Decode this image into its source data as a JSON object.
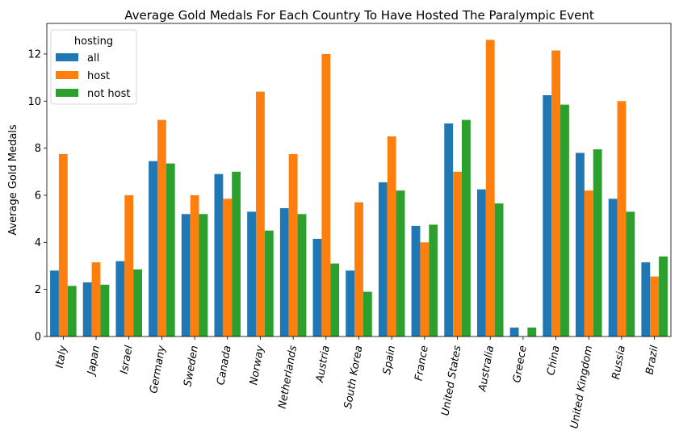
{
  "chart_data": {
    "type": "bar",
    "title": "Average Gold Medals For Each Country To Have Hosted The Paralympic Event",
    "xlabel": "",
    "ylabel": "Average Gold Medals",
    "ylim": [
      0,
      13.3
    ],
    "yticks": [
      0,
      2,
      4,
      6,
      8,
      10,
      12
    ],
    "grid": false,
    "legend": {
      "title": "hosting",
      "placement": "top-left"
    },
    "categories": [
      "Italy",
      "Japan",
      "Israel",
      "Germany",
      "Sweden",
      "Canada",
      "Norway",
      "Netherlands",
      "Austria",
      "South Korea",
      "Spain",
      "France",
      "United States",
      "Australia",
      "Greece",
      "China",
      "United Kingdom",
      "Russia",
      "Brazil"
    ],
    "series": [
      {
        "name": "all",
        "color": "#1f77b4",
        "values": [
          2.8,
          2.3,
          3.2,
          7.45,
          5.2,
          6.9,
          5.3,
          5.45,
          4.15,
          2.8,
          6.55,
          4.7,
          9.05,
          6.25,
          0.38,
          10.25,
          7.8,
          5.85,
          3.15
        ]
      },
      {
        "name": "host",
        "color": "#ff7f0e",
        "values": [
          7.75,
          3.15,
          6.0,
          9.2,
          6.0,
          5.85,
          10.4,
          7.75,
          12.0,
          5.7,
          8.5,
          4.0,
          7.0,
          12.6,
          0,
          12.15,
          6.2,
          10.0,
          2.55
        ]
      },
      {
        "name": "not host",
        "color": "#2ca02c",
        "values": [
          2.15,
          2.2,
          2.85,
          7.35,
          5.2,
          7.0,
          4.5,
          5.2,
          3.1,
          1.9,
          6.2,
          4.75,
          9.2,
          5.65,
          0.38,
          9.85,
          7.95,
          5.3,
          3.4
        ]
      }
    ]
  }
}
